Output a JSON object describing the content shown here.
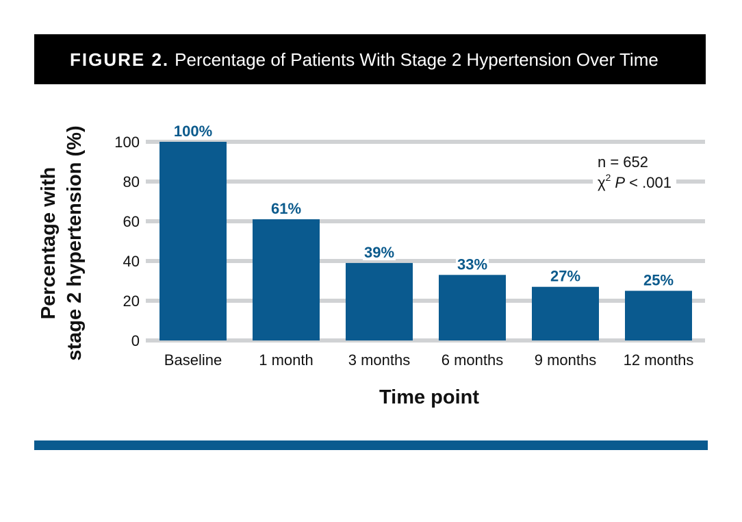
{
  "figure": {
    "label": "FIGURE 2.",
    "title": "Percentage of Patients With Stage 2 Hypertension Over Time"
  },
  "chart_data": {
    "type": "bar",
    "categories": [
      "Baseline",
      "1 month",
      "3 months",
      "6 months",
      "9 months",
      "12 months"
    ],
    "values": [
      100,
      61,
      39,
      33,
      27,
      25
    ],
    "data_labels": [
      "100%",
      "61%",
      "39%",
      "33%",
      "27%",
      "25%"
    ],
    "ylim": [
      0,
      100
    ],
    "yticks": [
      0,
      20,
      40,
      60,
      80,
      100
    ],
    "xlabel": "Time point",
    "ylabel_line1": "Percentage with",
    "ylabel_line2": "stage 2 hypertension (%)",
    "annotation_n": "n = 652",
    "annotation_chi": "χ",
    "annotation_sup": "2",
    "annotation_p": "P",
    "annotation_rest": " < .001",
    "grid": true,
    "colors": {
      "bar": "#0a5a8f",
      "grid": "#d0d2d4",
      "label": "#0b5a8c"
    }
  }
}
